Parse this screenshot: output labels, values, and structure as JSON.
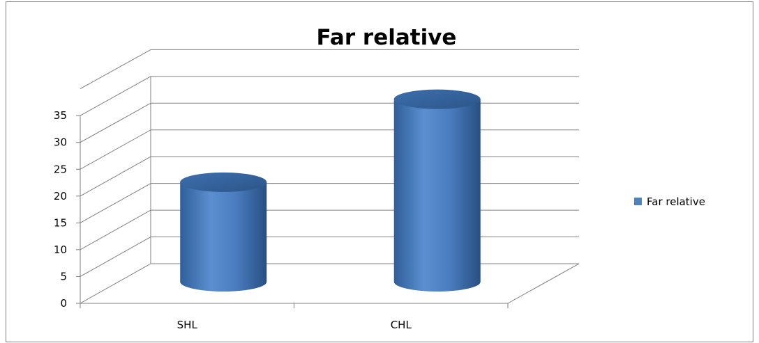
{
  "chart_data": {
    "type": "bar",
    "style": "3d-cylinder",
    "title": "Far relative",
    "xlabel": "",
    "ylabel": "",
    "categories": [
      "SHL",
      "CHL"
    ],
    "series": [
      {
        "name": "Far relative",
        "values": [
          18,
          33
        ],
        "color": "#4f81bd"
      }
    ],
    "ylim": [
      0,
      35
    ],
    "yticks": [
      0,
      5,
      10,
      15,
      20,
      25,
      30,
      35
    ],
    "grid": true,
    "legend": "right"
  }
}
